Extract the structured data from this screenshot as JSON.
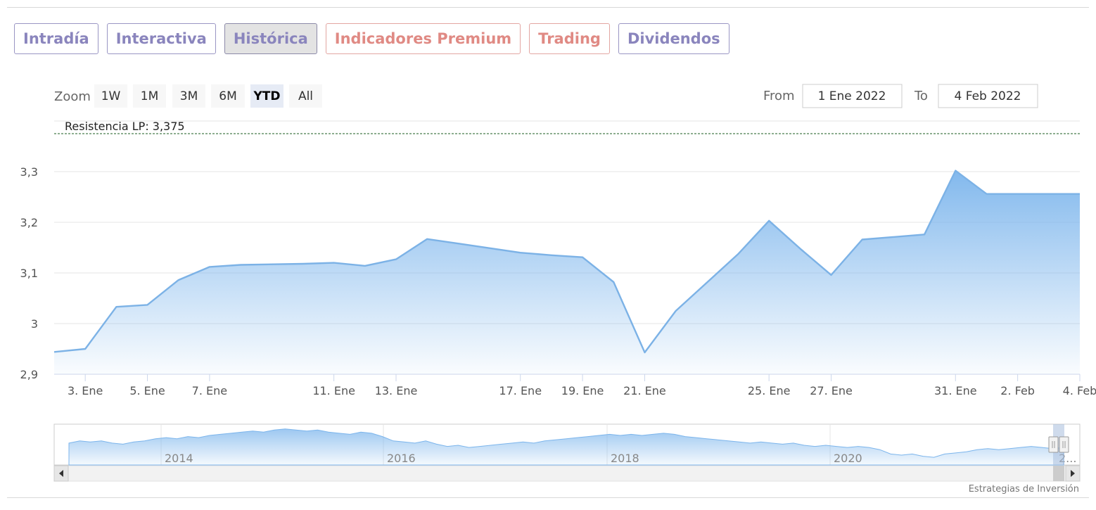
{
  "tabs": [
    {
      "label": "Intradía",
      "variant": "normal"
    },
    {
      "label": "Interactiva",
      "variant": "normal"
    },
    {
      "label": "Histórica",
      "variant": "active"
    },
    {
      "label": "Indicadores Premium",
      "variant": "premium"
    },
    {
      "label": "Trading",
      "variant": "premium"
    },
    {
      "label": "Dividendos",
      "variant": "normal"
    }
  ],
  "range_selector": {
    "zoom_label": "Zoom",
    "buttons": [
      "1W",
      "1M",
      "3M",
      "6M",
      "YTD",
      "All"
    ],
    "selected": "YTD",
    "from_label": "From",
    "from_value": "1 Ene 2022",
    "to_label": "To",
    "to_value": "4 Feb 2022"
  },
  "credits": "Estrategias de Inversión",
  "colors": {
    "line": "#7cb2e6",
    "fill_top": "#7cb5ec",
    "resistance": "#2e7d32",
    "tab_text": "#8a85bd",
    "tab_premium": "#e08a84"
  },
  "chart_data": {
    "type": "area",
    "grid": true,
    "yticks": [
      2.9,
      3.0,
      3.1,
      3.2,
      3.3
    ],
    "ytick_labels": [
      "2,9",
      "3",
      "3,1",
      "3,2",
      "3,3"
    ],
    "ylim": [
      2.9,
      3.4
    ],
    "xlim": [
      "2022-01-02",
      "2022-02-04"
    ],
    "xtick_labels": [
      {
        "date": "2022-01-03",
        "label": "3. Ene"
      },
      {
        "date": "2022-01-05",
        "label": "5. Ene"
      },
      {
        "date": "2022-01-07",
        "label": "7. Ene"
      },
      {
        "date": "2022-01-11",
        "label": "11. Ene"
      },
      {
        "date": "2022-01-13",
        "label": "13. Ene"
      },
      {
        "date": "2022-01-17",
        "label": "17. Ene"
      },
      {
        "date": "2022-01-19",
        "label": "19. Ene"
      },
      {
        "date": "2022-01-21",
        "label": "21. Ene"
      },
      {
        "date": "2022-01-25",
        "label": "25. Ene"
      },
      {
        "date": "2022-01-27",
        "label": "27. Ene"
      },
      {
        "date": "2022-01-31",
        "label": "31. Ene"
      },
      {
        "date": "2022-02-02",
        "label": "2. Feb"
      },
      {
        "date": "2022-02-04",
        "label": "4. Feb"
      }
    ],
    "series": [
      {
        "x": [
          "2022-01-02",
          "2022-01-03",
          "2022-01-04",
          "2022-01-05",
          "2022-01-06",
          "2022-01-07",
          "2022-01-08",
          "2022-01-10",
          "2022-01-11",
          "2022-01-12",
          "2022-01-13",
          "2022-01-14",
          "2022-01-15",
          "2022-01-17",
          "2022-01-18",
          "2022-01-19",
          "2022-01-20",
          "2022-01-21",
          "2022-01-22",
          "2022-01-24",
          "2022-01-25",
          "2022-01-26",
          "2022-01-27",
          "2022-01-28",
          "2022-01-30",
          "2022-01-31",
          "2022-02-01",
          "2022-02-02",
          "2022-02-03",
          "2022-02-04"
        ],
        "y": [
          2.944,
          2.95,
          3.033,
          3.037,
          3.086,
          3.112,
          3.116,
          3.118,
          3.12,
          3.114,
          3.127,
          3.167,
          3.158,
          3.14,
          3.135,
          3.131,
          3.082,
          2.943,
          3.025,
          3.137,
          3.203,
          3.148,
          3.096,
          3.166,
          3.176,
          3.302,
          3.256,
          3.256,
          3.256,
          3.256
        ]
      }
    ],
    "resistance": {
      "label": "Resistencia LP: 3,375",
      "value": 3.375
    },
    "navigator": {
      "labels": [
        "2014",
        "2016",
        "2018",
        "2020",
        "2..."
      ],
      "values": [
        3.5,
        3.6,
        3.55,
        3.6,
        3.5,
        3.45,
        3.55,
        3.6,
        3.7,
        3.75,
        3.7,
        3.8,
        3.75,
        3.85,
        3.9,
        3.95,
        4.0,
        4.05,
        4.0,
        4.1,
        4.15,
        4.1,
        4.05,
        4.1,
        4.0,
        3.95,
        3.9,
        4.0,
        3.95,
        3.8,
        3.6,
        3.55,
        3.5,
        3.6,
        3.45,
        3.35,
        3.4,
        3.3,
        3.35,
        3.4,
        3.45,
        3.5,
        3.55,
        3.5,
        3.6,
        3.65,
        3.7,
        3.75,
        3.8,
        3.85,
        3.9,
        3.85,
        3.9,
        3.85,
        3.9,
        3.95,
        3.9,
        3.8,
        3.75,
        3.7,
        3.65,
        3.6,
        3.55,
        3.5,
        3.55,
        3.5,
        3.45,
        3.5,
        3.4,
        3.35,
        3.4,
        3.35,
        3.3,
        3.35,
        3.3,
        3.2,
        3.0,
        2.95,
        3.0,
        2.9,
        2.85,
        3.0,
        3.05,
        3.1,
        3.2,
        3.25,
        3.2,
        3.25,
        3.3,
        3.35,
        3.3,
        3.25,
        3.3
      ]
    }
  }
}
